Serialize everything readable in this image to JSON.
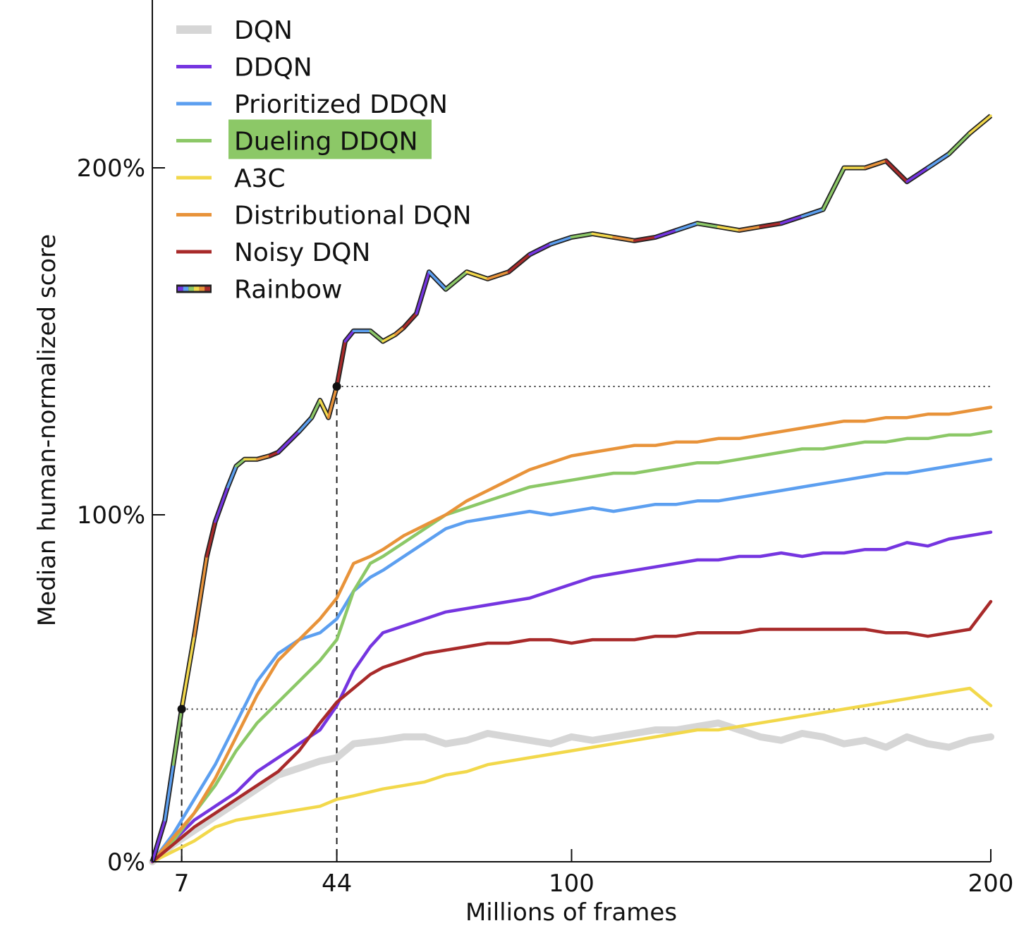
{
  "chart_data": {
    "type": "line",
    "title": "",
    "xlabel": "Millions of frames",
    "ylabel": "Median human-normalized score",
    "xlim": [
      0,
      200
    ],
    "ylim": [
      0,
      200
    ],
    "x_ticks": [
      {
        "value": 7,
        "label": "7"
      },
      {
        "value": 44,
        "label": "44"
      },
      {
        "value": 100,
        "label": "100"
      },
      {
        "value": 200,
        "label": "200"
      }
    ],
    "y_ticks": [
      {
        "value": 0,
        "label": "0%"
      },
      {
        "value": 100,
        "label": "100%"
      },
      {
        "value": 200,
        "label": "200%"
      }
    ],
    "legend_position": "top-left",
    "highlighted_legend_entry": "Dueling DDQN",
    "highlight_color": "#8cc867",
    "reference_lines": [
      {
        "x": 7,
        "y": 44
      },
      {
        "x": 44,
        "y": 137
      }
    ],
    "series": [
      {
        "name": "DQN",
        "color": "#d6d6d6",
        "x": [
          0,
          5,
          10,
          15,
          20,
          25,
          30,
          35,
          40,
          44,
          48,
          55,
          60,
          65,
          70,
          75,
          80,
          85,
          90,
          95,
          100,
          105,
          110,
          115,
          120,
          125,
          130,
          135,
          140,
          145,
          150,
          155,
          160,
          165,
          170,
          175,
          180,
          185,
          190,
          195,
          200
        ],
        "y": [
          0,
          5,
          9,
          13,
          17,
          21,
          25,
          27,
          29,
          30,
          34,
          35,
          36,
          36,
          34,
          35,
          37,
          36,
          35,
          34,
          36,
          35,
          36,
          37,
          38,
          38,
          39,
          40,
          38,
          36,
          35,
          37,
          36,
          34,
          35,
          33,
          36,
          34,
          33,
          35,
          36
        ]
      },
      {
        "name": "DDQN",
        "color": "#7535e0",
        "x": [
          0,
          5,
          10,
          15,
          20,
          25,
          30,
          35,
          40,
          44,
          48,
          52,
          55,
          60,
          65,
          70,
          75,
          80,
          85,
          90,
          95,
          100,
          105,
          110,
          115,
          120,
          125,
          130,
          135,
          140,
          145,
          150,
          155,
          160,
          165,
          170,
          175,
          180,
          185,
          190,
          195,
          200
        ],
        "y": [
          0,
          6,
          12,
          16,
          20,
          26,
          30,
          34,
          38,
          45,
          55,
          62,
          66,
          68,
          70,
          72,
          73,
          74,
          75,
          76,
          78,
          80,
          82,
          83,
          84,
          85,
          86,
          87,
          87,
          88,
          88,
          89,
          88,
          89,
          89,
          90,
          90,
          92,
          91,
          93,
          94,
          95
        ]
      },
      {
        "name": "Prioritized DDQN",
        "color": "#5c9ff0",
        "x": [
          0,
          5,
          10,
          15,
          20,
          25,
          30,
          35,
          40,
          44,
          48,
          52,
          55,
          60,
          65,
          70,
          75,
          80,
          85,
          90,
          95,
          100,
          105,
          110,
          115,
          120,
          125,
          130,
          135,
          140,
          145,
          150,
          155,
          160,
          165,
          170,
          175,
          180,
          185,
          190,
          195,
          200
        ],
        "y": [
          0,
          8,
          18,
          28,
          40,
          52,
          60,
          64,
          66,
          70,
          78,
          82,
          84,
          88,
          92,
          96,
          98,
          99,
          100,
          101,
          100,
          101,
          102,
          101,
          102,
          103,
          103,
          104,
          104,
          105,
          106,
          107,
          108,
          109,
          110,
          111,
          112,
          112,
          113,
          114,
          115,
          116
        ]
      },
      {
        "name": "Dueling DDQN",
        "color": "#8cc867",
        "x": [
          0,
          5,
          10,
          15,
          20,
          25,
          30,
          35,
          40,
          44,
          48,
          52,
          55,
          60,
          65,
          70,
          75,
          80,
          85,
          90,
          95,
          100,
          105,
          110,
          115,
          120,
          125,
          130,
          135,
          140,
          145,
          150,
          155,
          160,
          165,
          170,
          175,
          180,
          185,
          190,
          195,
          200
        ],
        "y": [
          0,
          6,
          14,
          22,
          32,
          40,
          46,
          52,
          58,
          64,
          78,
          86,
          88,
          92,
          96,
          100,
          102,
          104,
          106,
          108,
          109,
          110,
          111,
          112,
          112,
          113,
          114,
          115,
          115,
          116,
          117,
          118,
          119,
          119,
          120,
          121,
          121,
          122,
          122,
          123,
          123,
          124
        ]
      },
      {
        "name": "A3C",
        "color": "#f2d84b",
        "x": [
          0,
          5,
          10,
          15,
          20,
          25,
          30,
          35,
          40,
          44,
          48,
          55,
          60,
          65,
          70,
          75,
          80,
          85,
          90,
          95,
          100,
          105,
          110,
          115,
          120,
          125,
          130,
          135,
          140,
          145,
          150,
          155,
          160,
          165,
          170,
          175,
          180,
          185,
          190,
          195,
          200
        ],
        "y": [
          0,
          3,
          6,
          10,
          12,
          13,
          14,
          15,
          16,
          18,
          19,
          21,
          22,
          23,
          25,
          26,
          28,
          29,
          30,
          31,
          32,
          33,
          34,
          35,
          36,
          37,
          38,
          38,
          39,
          40,
          41,
          42,
          43,
          44,
          45,
          46,
          47,
          48,
          49,
          50,
          45
        ]
      },
      {
        "name": "Distributional DQN",
        "color": "#e8933a",
        "x": [
          0,
          5,
          10,
          15,
          20,
          25,
          30,
          35,
          40,
          44,
          48,
          52,
          55,
          60,
          65,
          70,
          75,
          80,
          85,
          90,
          95,
          100,
          105,
          110,
          115,
          120,
          125,
          130,
          135,
          140,
          145,
          150,
          155,
          160,
          165,
          170,
          175,
          180,
          185,
          190,
          195,
          200
        ],
        "y": [
          0,
          7,
          14,
          24,
          36,
          48,
          58,
          64,
          70,
          76,
          86,
          88,
          90,
          94,
          97,
          100,
          104,
          107,
          110,
          113,
          115,
          117,
          118,
          119,
          120,
          120,
          121,
          121,
          122,
          122,
          123,
          124,
          125,
          126,
          127,
          127,
          128,
          128,
          129,
          129,
          130,
          131
        ]
      },
      {
        "name": "Noisy DQN",
        "color": "#a82a2a",
        "x": [
          0,
          5,
          10,
          15,
          20,
          25,
          30,
          35,
          40,
          44,
          48,
          52,
          55,
          60,
          65,
          70,
          75,
          80,
          85,
          90,
          95,
          100,
          105,
          110,
          115,
          120,
          125,
          130,
          135,
          140,
          145,
          150,
          155,
          160,
          165,
          170,
          175,
          180,
          185,
          190,
          195,
          200
        ],
        "y": [
          0,
          5,
          10,
          14,
          18,
          22,
          26,
          32,
          40,
          46,
          50,
          54,
          56,
          58,
          60,
          61,
          62,
          63,
          63,
          64,
          64,
          63,
          64,
          64,
          64,
          65,
          65,
          66,
          66,
          66,
          67,
          67,
          67,
          67,
          67,
          67,
          66,
          66,
          65,
          66,
          67,
          75
        ]
      },
      {
        "name": "Rainbow",
        "color": "#333333",
        "rainbow": true,
        "x": [
          0,
          3,
          5,
          7,
          10,
          13,
          15,
          18,
          20,
          22,
          25,
          28,
          30,
          35,
          38,
          40,
          42,
          44,
          46,
          48,
          52,
          55,
          58,
          60,
          63,
          66,
          70,
          75,
          80,
          85,
          90,
          95,
          100,
          105,
          110,
          115,
          120,
          125,
          130,
          135,
          140,
          145,
          150,
          155,
          160,
          165,
          170,
          175,
          180,
          185,
          190,
          195,
          200
        ],
        "y": [
          0,
          12,
          28,
          44,
          65,
          88,
          98,
          108,
          114,
          116,
          116,
          117,
          118,
          124,
          128,
          133,
          128,
          137,
          150,
          153,
          153,
          150,
          152,
          154,
          158,
          170,
          165,
          170,
          168,
          170,
          175,
          178,
          180,
          181,
          180,
          179,
          180,
          182,
          184,
          183,
          182,
          183,
          184,
          186,
          188,
          200,
          200,
          202,
          196,
          200,
          204,
          210,
          215
        ]
      }
    ],
    "rainbow_segment_colors": [
      "#7535e0",
      "#5c9ff0",
      "#8cc867",
      "#f2d84b",
      "#e8933a",
      "#a82a2a"
    ]
  }
}
